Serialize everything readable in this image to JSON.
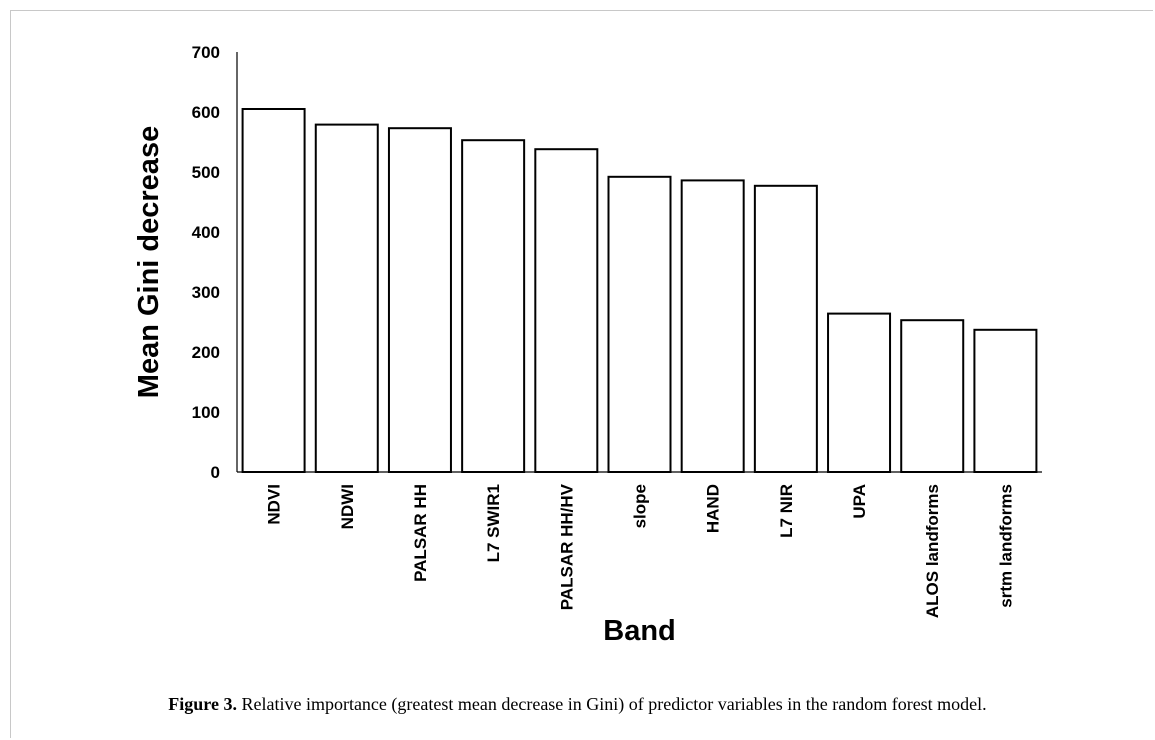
{
  "chart_data": {
    "type": "bar",
    "categories": [
      "NDVI",
      "NDWI",
      "PALSAR HH",
      "L7 SWIR1",
      "PALSAR HH/HV",
      "slope",
      "HAND",
      "L7 NIR",
      "UPA",
      "ALOS landforms",
      "srtm landforms"
    ],
    "values": [
      605,
      579,
      573,
      553,
      538,
      492,
      486,
      477,
      264,
      253,
      237
    ],
    "xlabel": "Band",
    "ylabel": "Mean Gini decrease",
    "ylim": [
      0,
      700
    ],
    "yticks": [
      0,
      100,
      200,
      300,
      400,
      500,
      600,
      700
    ],
    "grid": false,
    "legend": "none",
    "bar_fill": "#ffffff",
    "bar_stroke": "#000000"
  },
  "caption": {
    "label": "Figure 3.",
    "text": " Relative importance (greatest mean decrease in Gini) of predictor variables in the random forest model."
  }
}
